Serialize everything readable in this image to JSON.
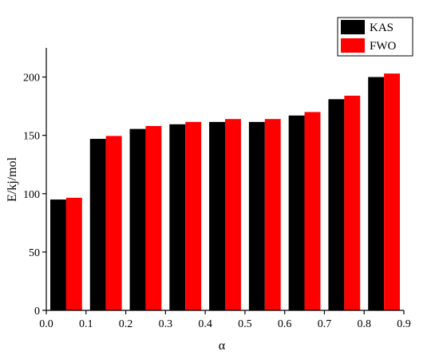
{
  "chart_data": {
    "type": "bar",
    "x_label": "α",
    "y_label": "E/kj/mol",
    "x": [
      0.05,
      0.15,
      0.25,
      0.35,
      0.45,
      0.55,
      0.65,
      0.75,
      0.85
    ],
    "series": [
      {
        "name": "KAS",
        "color": "#000000",
        "values": [
          95,
          147,
          155.5,
          159.5,
          161.5,
          161.5,
          167,
          181,
          200
        ]
      },
      {
        "name": "FWO",
        "color": "#ff0000",
        "values": [
          96.5,
          149.5,
          158,
          161.5,
          164,
          164,
          170,
          184,
          203
        ]
      }
    ],
    "xlim": [
      0,
      0.9
    ],
    "xticks": [
      {
        "value": 0,
        "label": "0.0"
      },
      0.1,
      0.2,
      0.3,
      0.4,
      0.5,
      0.6,
      0.7,
      0.8,
      0.9
    ],
    "ylim": [
      0,
      225
    ],
    "yticks": [
      0,
      50,
      100,
      150,
      200
    ],
    "legend": "top-right"
  }
}
